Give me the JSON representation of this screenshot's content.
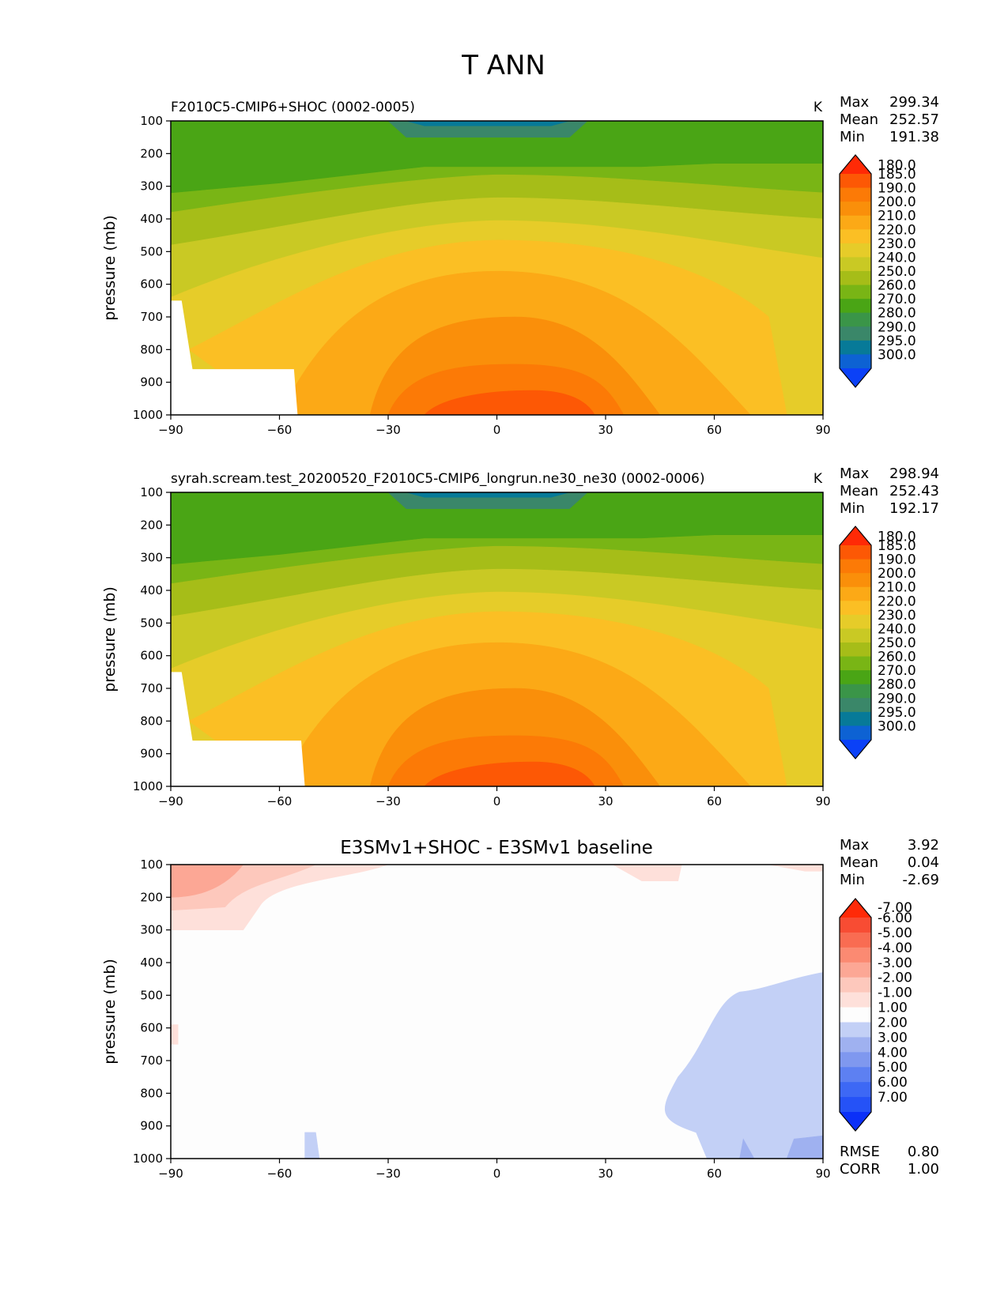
{
  "figure_title": "T ANN",
  "chart_data": [
    {
      "type": "heatmap",
      "title": "F2010C5-CMIP6+SHOC (0002-0005)",
      "units": "K",
      "xlabel": "",
      "ylabel": "pressure (mb)",
      "x_ticks": [
        -90,
        -60,
        -30,
        0,
        30,
        60,
        90
      ],
      "y_ticks": [
        100,
        200,
        300,
        400,
        500,
        600,
        700,
        800,
        900,
        1000
      ],
      "xlim": [
        -90,
        90
      ],
      "ylim": [
        1000,
        100
      ],
      "stats": {
        "Max": "299.34",
        "Mean": "252.57",
        "Min": "191.38"
      },
      "levels": [
        "180.0",
        "185.0",
        "190.0",
        "200.0",
        "210.0",
        "220.0",
        "230.0",
        "240.0",
        "250.0",
        "260.0",
        "270.0",
        "280.0",
        "290.0",
        "295.0",
        "300.0"
      ],
      "colorbar_colors": [
        "#0b41f7",
        "#0d62d3",
        "#077a98",
        "#3a8769",
        "#3a9548",
        "#4aa515",
        "#79b515",
        "#a6bd18",
        "#c9c924",
        "#e6cc29",
        "#fbbf24",
        "#fca916",
        "#fa8f0a",
        "#fc7a06",
        "#fd5805",
        "#ff2a06"
      ],
      "field": "base"
    },
    {
      "type": "heatmap",
      "title": "syrah.scream.test_20200520_F2010C5-CMIP6_longrun.ne30_ne30 (0002-0006)",
      "units": "K",
      "xlabel": "",
      "ylabel": "pressure (mb)",
      "x_ticks": [
        -90,
        -60,
        -30,
        0,
        30,
        60,
        90
      ],
      "y_ticks": [
        100,
        200,
        300,
        400,
        500,
        600,
        700,
        800,
        900,
        1000
      ],
      "xlim": [
        -90,
        90
      ],
      "ylim": [
        1000,
        100
      ],
      "stats": {
        "Max": "298.94",
        "Mean": "252.43",
        "Min": "192.17"
      },
      "levels": [
        "180.0",
        "185.0",
        "190.0",
        "200.0",
        "210.0",
        "220.0",
        "230.0",
        "240.0",
        "250.0",
        "260.0",
        "270.0",
        "280.0",
        "290.0",
        "295.0",
        "300.0"
      ],
      "colorbar_colors": [
        "#0b41f7",
        "#0d62d3",
        "#077a98",
        "#3a8769",
        "#3a9548",
        "#4aa515",
        "#79b515",
        "#a6bd18",
        "#c9c924",
        "#e6cc29",
        "#fbbf24",
        "#fca916",
        "#fa8f0a",
        "#fc7a06",
        "#fd5805",
        "#ff2a06"
      ],
      "field": "base"
    },
    {
      "type": "heatmap",
      "title": "E3SMv1+SHOC - E3SMv1 baseline",
      "units": "",
      "xlabel": "",
      "ylabel": "pressure (mb)",
      "x_ticks": [
        -90,
        -60,
        -30,
        0,
        30,
        60,
        90
      ],
      "y_ticks": [
        100,
        200,
        300,
        400,
        500,
        600,
        700,
        800,
        900,
        1000
      ],
      "xlim": [
        -90,
        90
      ],
      "ylim": [
        1000,
        100
      ],
      "stats": {
        "Max": "3.92",
        "Mean": "0.04",
        "Min": "-2.69"
      },
      "levels": [
        "-7.00",
        "-6.00",
        "-5.00",
        "-4.00",
        "-3.00",
        "-2.00",
        "-1.00",
        "1.00",
        "2.00",
        "3.00",
        "4.00",
        "5.00",
        "6.00",
        "7.00"
      ],
      "colorbar_colors": [
        "#0b30f8",
        "#2552f7",
        "#3d68f5",
        "#5d80f2",
        "#7f98ef",
        "#9fb1f0",
        "#c3d0f6",
        "#fdfdfd",
        "#fee0da",
        "#fdc8bc",
        "#fca795",
        "#fb8a72",
        "#f96c52",
        "#f84c33",
        "#ff2a08"
      ],
      "field": "diff",
      "extra_stats": {
        "RMSE": "0.80",
        "CORR": "1.00"
      }
    }
  ]
}
